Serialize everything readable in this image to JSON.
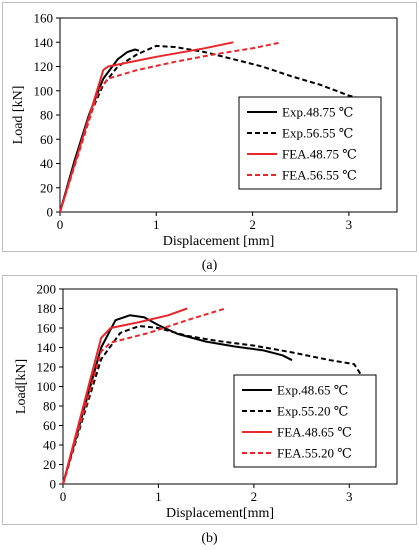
{
  "captions": [
    "(a)",
    "(b)"
  ],
  "chart_data": [
    {
      "type": "line",
      "xlabel": "Displacement [mm]",
      "ylabel": "Load [kN]",
      "xlim": [
        0,
        3.5
      ],
      "ylim": [
        0,
        160
      ],
      "xticks": [
        0,
        1,
        2,
        3
      ],
      "yticks": [
        0,
        20,
        40,
        60,
        80,
        100,
        120,
        140,
        160
      ],
      "grid": false,
      "legend_position": "right",
      "series": [
        {
          "name": "Exp.48.75 ℃",
          "color": "#000000",
          "dash": "solid",
          "x": [
            0,
            0.15,
            0.3,
            0.45,
            0.6,
            0.7,
            0.78,
            0.82
          ],
          "y": [
            0,
            42,
            80,
            110,
            126,
            132,
            134,
            133
          ]
        },
        {
          "name": "Exp.56.55 ℃",
          "color": "#000000",
          "dash": "dashed",
          "x": [
            0,
            0.15,
            0.3,
            0.45,
            0.6,
            0.8,
            1.0,
            1.2,
            1.5,
            1.8,
            2.1,
            2.4,
            2.7,
            3.0,
            3.1
          ],
          "y": [
            0,
            40,
            78,
            105,
            120,
            130,
            137,
            136,
            132,
            126,
            120,
            112,
            105,
            96,
            94
          ]
        },
        {
          "name": "FEA.48.75 ℃",
          "color": "#e8262b",
          "dash": "solid",
          "x": [
            0,
            0.45,
            0.5,
            1.0,
            1.5,
            1.8
          ],
          "y": [
            0,
            117,
            120,
            128,
            135,
            140
          ]
        },
        {
          "name": "FEA.56.55 ℃",
          "color": "#e8262b",
          "dash": "dashed",
          "x": [
            0,
            0.4,
            0.5,
            0.8,
            1.2,
            1.6,
            2.0,
            2.3
          ],
          "y": [
            0,
            100,
            110,
            117,
            124,
            130,
            135,
            140
          ]
        }
      ]
    },
    {
      "type": "line",
      "xlabel": "Displacement[mm]",
      "ylabel": "Load[kN]",
      "xlim": [
        0,
        3.5
      ],
      "ylim": [
        0,
        200
      ],
      "xticks": [
        0,
        1,
        2,
        3
      ],
      "yticks": [
        0,
        20,
        40,
        60,
        80,
        100,
        120,
        140,
        160,
        180,
        200
      ],
      "grid": false,
      "legend_position": "right",
      "series": [
        {
          "name": "Exp.48.65 ℃",
          "color": "#000000",
          "dash": "solid",
          "x": [
            0,
            0.2,
            0.4,
            0.55,
            0.7,
            0.85,
            1.0,
            1.2,
            1.5,
            1.8,
            2.1,
            2.3,
            2.4
          ],
          "y": [
            0,
            70,
            140,
            168,
            173,
            171,
            163,
            154,
            146,
            141,
            137,
            132,
            127
          ]
        },
        {
          "name": "Exp.55.20 ℃",
          "color": "#000000",
          "dash": "dashed",
          "x": [
            0,
            0.2,
            0.4,
            0.6,
            0.8,
            1.0,
            1.3,
            1.6,
            2.0,
            2.4,
            2.8,
            3.05,
            3.15
          ],
          "y": [
            0,
            65,
            128,
            155,
            162,
            160,
            152,
            147,
            142,
            135,
            127,
            123,
            108
          ]
        },
        {
          "name": "FEA.48.65 ℃",
          "color": "#e8262b",
          "dash": "solid",
          "x": [
            0,
            0.4,
            0.5,
            0.8,
            1.1,
            1.3
          ],
          "y": [
            0,
            150,
            160,
            166,
            173,
            180
          ]
        },
        {
          "name": "FEA.55.20 ℃",
          "color": "#e8262b",
          "dash": "dashed",
          "x": [
            0,
            0.4,
            0.5,
            0.9,
            1.3,
            1.7
          ],
          "y": [
            0,
            136,
            145,
            155,
            168,
            180
          ]
        }
      ]
    }
  ]
}
